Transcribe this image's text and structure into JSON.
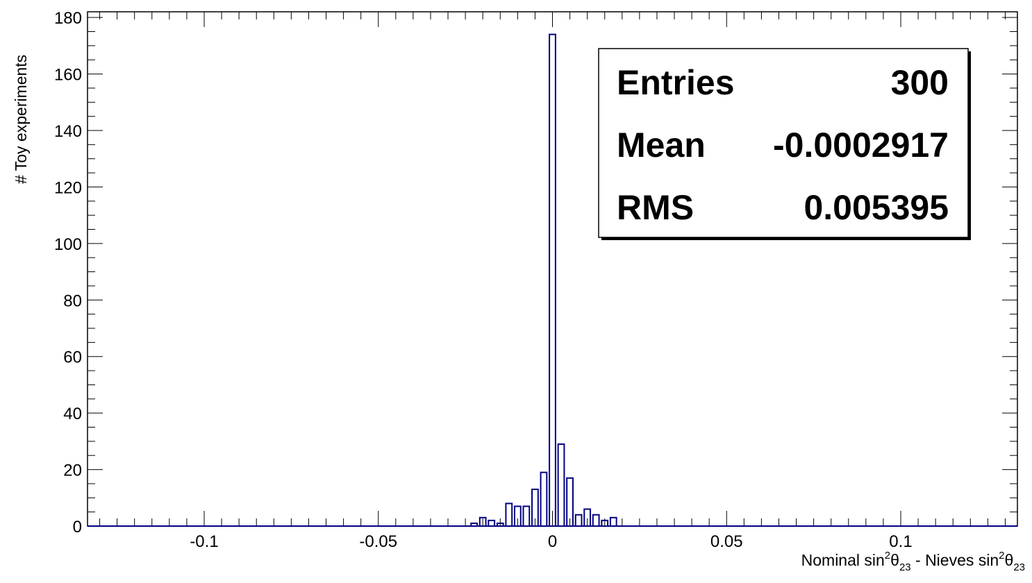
{
  "chart_data": {
    "type": "bar",
    "xlabel_parts": {
      "a1": "Nominal sin",
      "sup1": "2",
      "theta1": "θ",
      "sub1": "23",
      "mid": " - Nieves sin",
      "sup2": "2",
      "theta2": "θ",
      "sub2": "23"
    },
    "ylabel": "# Toy experiments",
    "xlim": [
      -0.1335,
      0.1335
    ],
    "ylim": [
      0,
      182
    ],
    "x_ticks": [
      -0.1,
      -0.05,
      0,
      0.05,
      0.1
    ],
    "x_tick_labels": [
      "-0.1",
      "-0.05",
      "0",
      "0.05",
      "0.1"
    ],
    "y_ticks": [
      0,
      20,
      40,
      60,
      80,
      100,
      120,
      140,
      160,
      180
    ],
    "y_tick_labels": [
      "0",
      "20",
      "40",
      "60",
      "80",
      "100",
      "120",
      "140",
      "160",
      "180"
    ],
    "bin_width": 0.0025,
    "bars": [
      {
        "x": -0.0225,
        "value": 1
      },
      {
        "x": -0.02,
        "value": 3
      },
      {
        "x": -0.0175,
        "value": 2
      },
      {
        "x": -0.015,
        "value": 1
      },
      {
        "x": -0.0125,
        "value": 8
      },
      {
        "x": -0.01,
        "value": 7
      },
      {
        "x": -0.0075,
        "value": 7
      },
      {
        "x": -0.005,
        "value": 13
      },
      {
        "x": -0.0025,
        "value": 19
      },
      {
        "x": 0.0,
        "value": 174
      },
      {
        "x": 0.0025,
        "value": 29
      },
      {
        "x": 0.005,
        "value": 17
      },
      {
        "x": 0.0075,
        "value": 4
      },
      {
        "x": 0.01,
        "value": 6
      },
      {
        "x": 0.0125,
        "value": 4
      },
      {
        "x": 0.015,
        "value": 2
      },
      {
        "x": 0.0175,
        "value": 3
      }
    ],
    "bar_color": "#000080",
    "grid": false,
    "legend_placement": "top-right",
    "stats": {
      "entries_label": "Entries",
      "entries_value": "300",
      "mean_label": "Mean",
      "mean_value": "-0.0002917",
      "rms_label": "RMS",
      "rms_value": "0.005395"
    }
  }
}
